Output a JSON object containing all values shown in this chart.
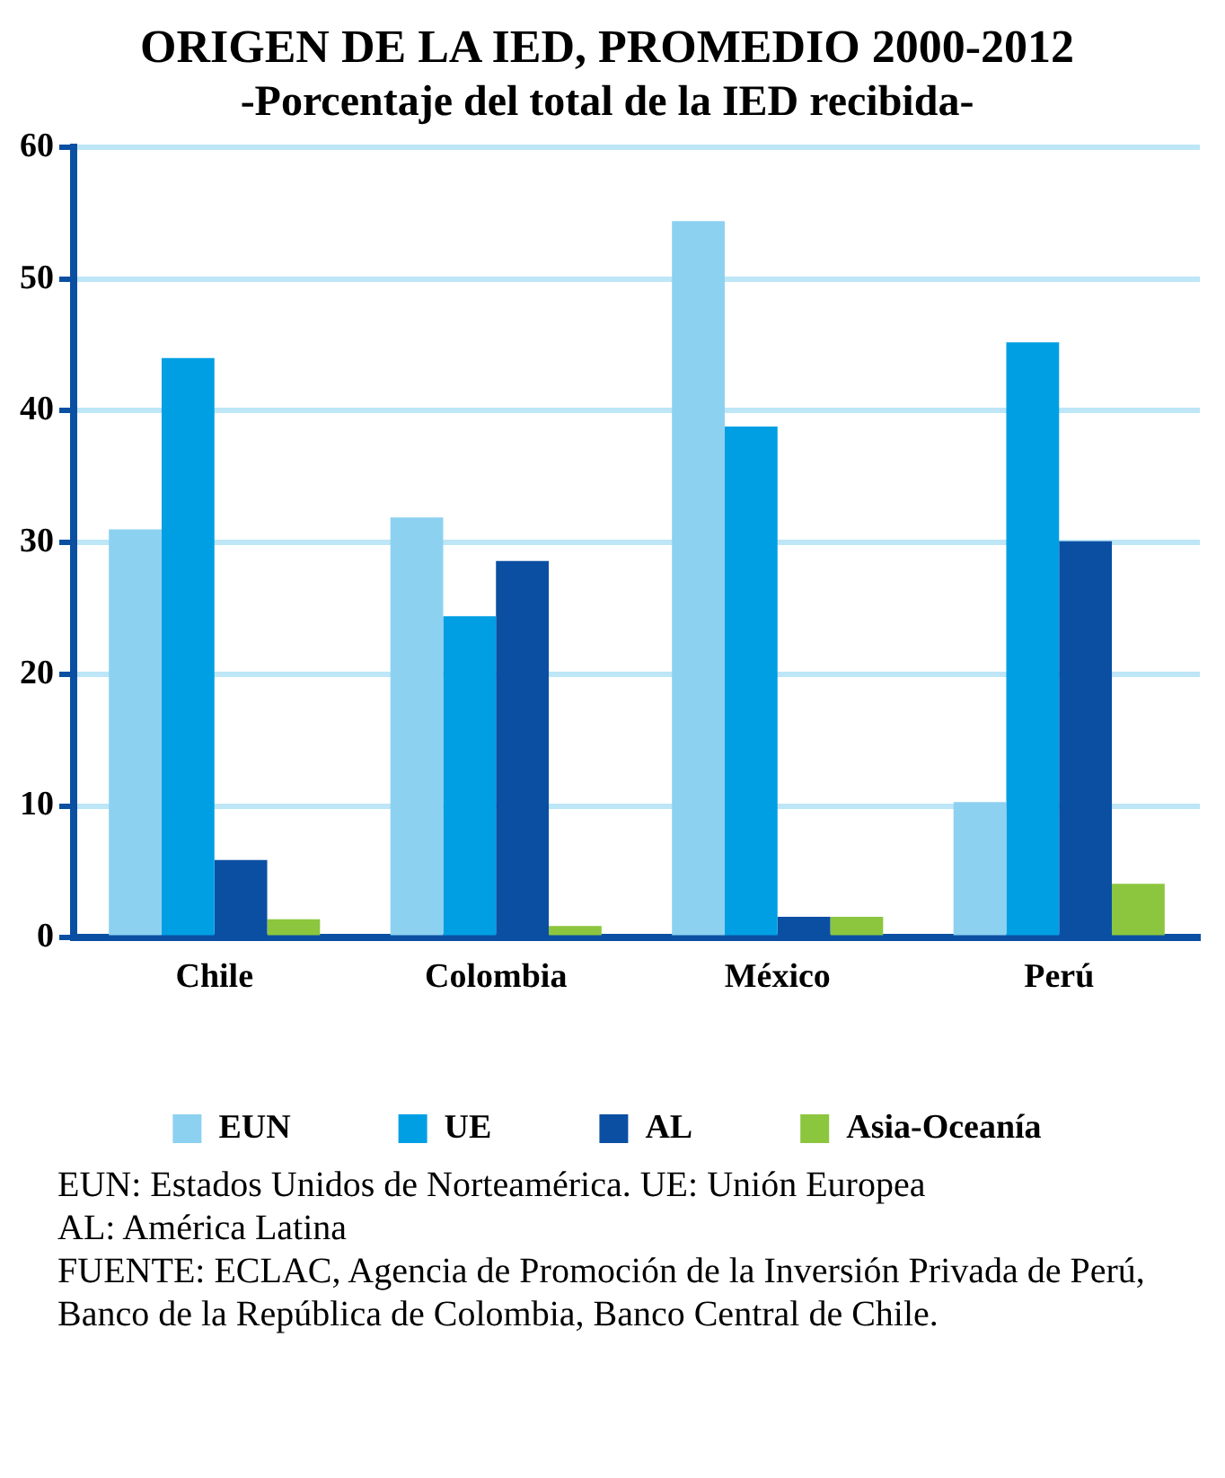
{
  "chart_data": {
    "type": "bar",
    "title": "ORIGEN DE LA IED, PROMEDIO 2000-2012",
    "subtitle": "-Porcentaje del total de la IED recibida-",
    "categories": [
      "Chile",
      "Colombia",
      "México",
      "Perú"
    ],
    "series": [
      {
        "name": "EUN",
        "color": "#8dd1f1",
        "values": [
          31.0,
          31.9,
          54.4,
          10.3
        ]
      },
      {
        "name": "UE",
        "color": "#009fe3",
        "values": [
          44.0,
          24.4,
          38.8,
          45.2
        ]
      },
      {
        "name": "AL",
        "color": "#0b4fa3",
        "values": [
          5.9,
          28.6,
          1.6,
          30.1
        ]
      },
      {
        "name": "Asia-Oceanía",
        "color": "#8cc63e",
        "values": [
          1.4,
          0.9,
          1.6,
          4.1
        ]
      }
    ],
    "ylim": [
      0,
      60
    ],
    "yticks": [
      0,
      10,
      20,
      30,
      40,
      50,
      60
    ],
    "grid": "y",
    "legend": "bottom",
    "annotations": [
      "EUN: Estados Unidos de Norteamérica. UE: Unión Europea",
      "AL: América Latina",
      "FUENTE: ECLAC, Agencia de Promoción de la Inversión Privada de Perú, Banco de la República de Colombia, Banco Central de Chile."
    ]
  }
}
